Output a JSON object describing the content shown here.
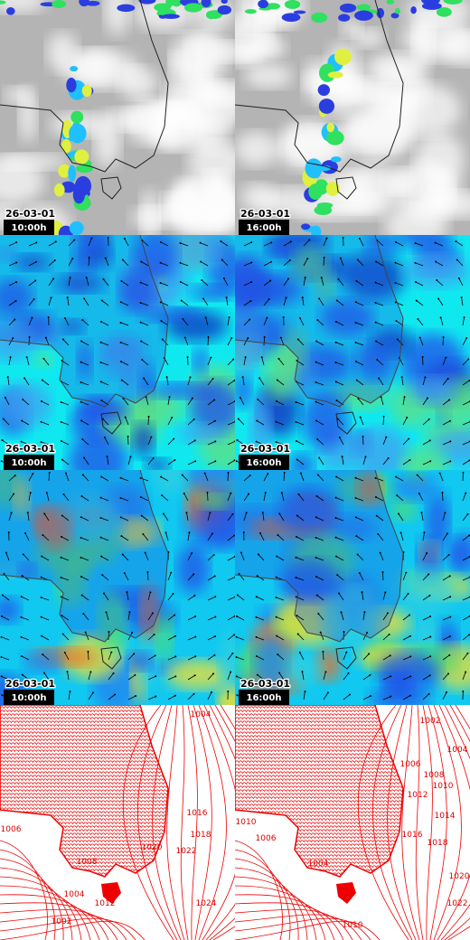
{
  "rows": [
    {
      "panels": [
        {
          "date": "26-03-01",
          "time": "10:00h"
        },
        {
          "date": "26-03-01",
          "time": "16:00h"
        }
      ]
    },
    {
      "panels": [
        {
          "date": "26-03-01",
          "time": "10:00h"
        },
        {
          "date": "26-03-01",
          "time": "16:00h"
        }
      ]
    },
    {
      "panels": [
        {
          "date": "26-03-01",
          "time": "10:00h"
        },
        {
          "date": "26-03-01",
          "time": "16:00h"
        }
      ]
    },
    {
      "panels": [
        {
          "isobar_labels": [
            "1004",
            "1016",
            "1018",
            "1020",
            "1022",
            "1008",
            "1006",
            "1004",
            "1012",
            "1024",
            "1002"
          ]
        },
        {
          "isobar_labels": [
            "1002",
            "1004",
            "1006",
            "1008",
            "1010",
            "1012",
            "1014",
            "1016",
            "1018",
            "1010",
            "1006",
            "1004",
            "1020",
            "1022",
            "1010"
          ]
        }
      ]
    }
  ]
}
